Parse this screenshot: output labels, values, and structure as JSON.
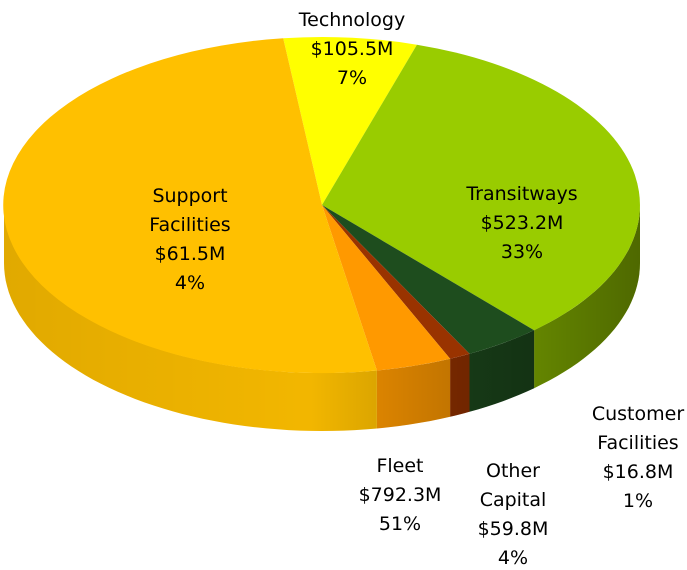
{
  "chart_data": {
    "type": "pie",
    "categories": [
      "Technology",
      "Transitways",
      "Support Facilities",
      "Customer Facilities",
      "Other Capital",
      "Fleet"
    ],
    "values": [
      105.5,
      523.2,
      61.5,
      16.8,
      59.8,
      792.3
    ],
    "value_labels": [
      "$105.5M",
      "$523.2M",
      "$61.5M",
      "$16.8M",
      "$59.8M",
      "$792.3M"
    ],
    "percent_labels": [
      "7%",
      "33%",
      "4%",
      "1%",
      "4%",
      "51%"
    ],
    "colors": [
      "#ffff00",
      "#99cc00",
      "#1e4d1e",
      "#993300",
      "#ff9900",
      "#ffc000"
    ]
  }
}
